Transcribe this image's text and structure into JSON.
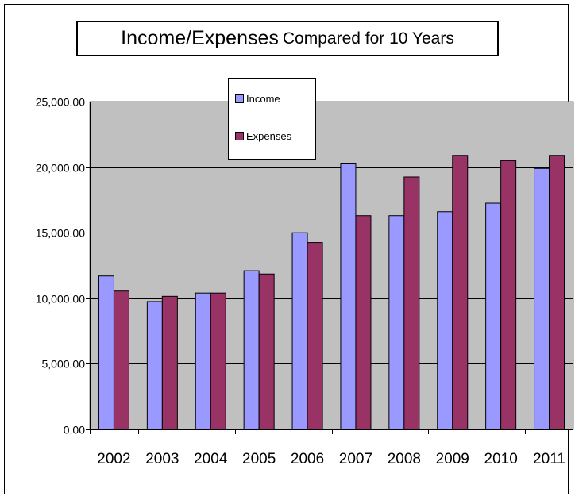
{
  "chart_data": {
    "type": "bar",
    "title_main": "Income/Expenses",
    "title_rest": "Compared for 10 Years",
    "categories": [
      "2002",
      "2003",
      "2004",
      "2005",
      "2006",
      "2007",
      "2008",
      "2009",
      "2010",
      "2011"
    ],
    "series": [
      {
        "name": "Income",
        "color": "#9999ff",
        "values": [
          11700,
          9750,
          10400,
          12100,
          15000,
          20250,
          16300,
          16600,
          17250,
          19900
        ]
      },
      {
        "name": "Expenses",
        "color": "#993366",
        "values": [
          10550,
          10150,
          10400,
          11850,
          14250,
          16300,
          19250,
          20900,
          20500,
          20900
        ]
      }
    ],
    "ylim": [
      0,
      25000
    ],
    "yticks": [
      0,
      5000,
      10000,
      15000,
      20000,
      25000
    ],
    "ytick_labels": [
      "0.00",
      "5,000.00",
      "10,000.00",
      "15,000.00",
      "20,000.00",
      "25,000.00"
    ],
    "plot_background": "#c0c0c0",
    "grid": true,
    "legend_position": "top-center",
    "xlabel": "",
    "ylabel": ""
  }
}
